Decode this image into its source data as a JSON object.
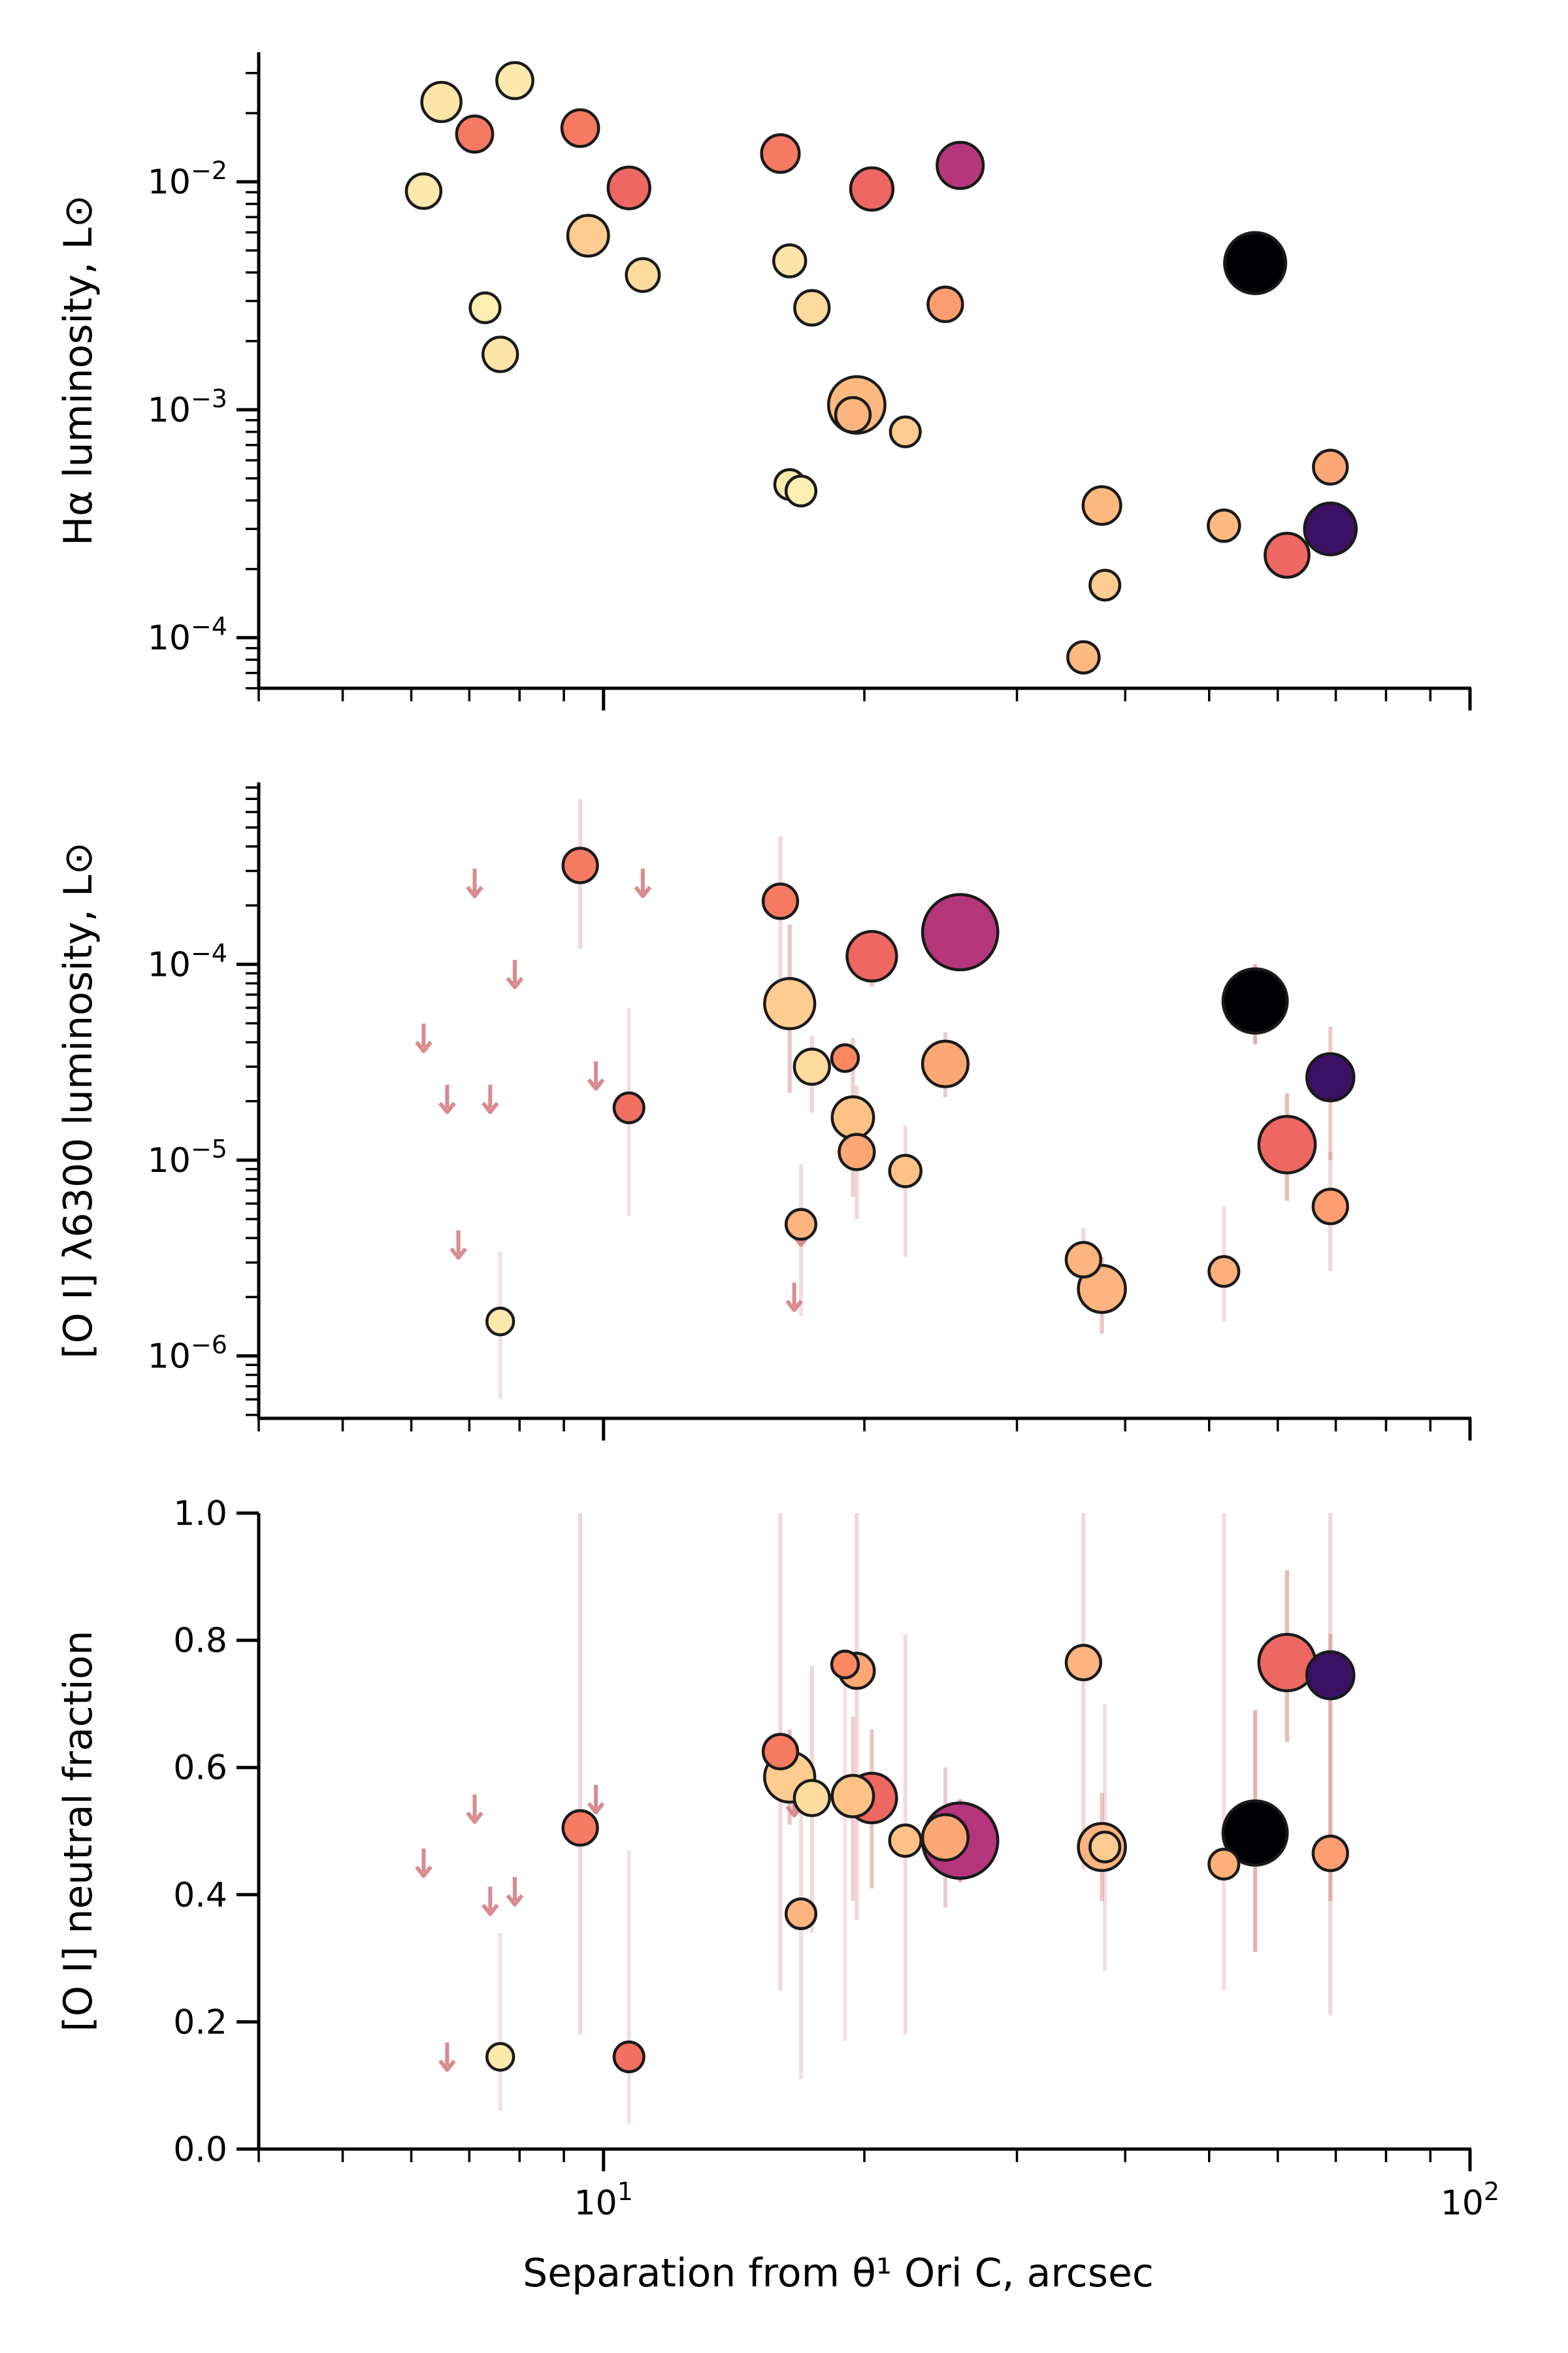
{
  "chart_data": [
    {
      "type": "scatter",
      "ylabel": "Hα luminosity, L⊙",
      "xscale": "log",
      "yscale": "log",
      "xlim": [
        4,
        100
      ],
      "ylim": [
        6e-05,
        0.037
      ],
      "yticks": [
        {
          "value": 0.0001,
          "base": "10",
          "exp": "−4"
        },
        {
          "value": 0.001,
          "base": "10",
          "exp": "−3"
        },
        {
          "value": 0.01,
          "base": "10",
          "exp": "−2"
        }
      ],
      "points": [
        {
          "x": 6.2,
          "y": 0.0091,
          "s": 0.6,
          "c": 0.96
        },
        {
          "x": 6.5,
          "y": 0.0224,
          "s": 0.75,
          "c": 0.95
        },
        {
          "x": 7.1,
          "y": 0.0162,
          "s": 0.65,
          "c": 0.72
        },
        {
          "x": 7.3,
          "y": 0.0028,
          "s": 0.45,
          "c": 0.97
        },
        {
          "x": 7.6,
          "y": 0.00175,
          "s": 0.6,
          "c": 0.95
        },
        {
          "x": 7.9,
          "y": 0.0278,
          "s": 0.65,
          "c": 0.96
        },
        {
          "x": 9.4,
          "y": 0.0172,
          "s": 0.67,
          "c": 0.72
        },
        {
          "x": 9.6,
          "y": 0.0058,
          "s": 0.8,
          "c": 0.9
        },
        {
          "x": 10.7,
          "y": 0.0094,
          "s": 0.83,
          "c": 0.68
        },
        {
          "x": 11.1,
          "y": 0.0039,
          "s": 0.55,
          "c": 0.93
        },
        {
          "x": 16.0,
          "y": 0.0133,
          "s": 0.7,
          "c": 0.72
        },
        {
          "x": 16.4,
          "y": 0.0045,
          "s": 0.52,
          "c": 0.95
        },
        {
          "x": 16.4,
          "y": 0.00047,
          "s": 0.45,
          "c": 0.96
        },
        {
          "x": 16.9,
          "y": 0.00044,
          "s": 0.45,
          "c": 0.97
        },
        {
          "x": 17.4,
          "y": 0.0028,
          "s": 0.6,
          "c": 0.93
        },
        {
          "x": 19.4,
          "y": 0.00095,
          "s": 0.6,
          "c": 0.85
        },
        {
          "x": 19.6,
          "y": 0.00105,
          "s": 1.3,
          "c": 0.86
        },
        {
          "x": 20.4,
          "y": 0.0093,
          "s": 0.85,
          "c": 0.68
        },
        {
          "x": 22.3,
          "y": 0.0008,
          "s": 0.45,
          "c": 0.9
        },
        {
          "x": 24.8,
          "y": 0.0029,
          "s": 0.6,
          "c": 0.8
        },
        {
          "x": 25.8,
          "y": 0.0118,
          "s": 0.97,
          "c": 0.5
        },
        {
          "x": 35.8,
          "y": 8.2e-05,
          "s": 0.5,
          "c": 0.86
        },
        {
          "x": 37.6,
          "y": 0.00038,
          "s": 0.7,
          "c": 0.86
        },
        {
          "x": 37.9,
          "y": 0.00017,
          "s": 0.45,
          "c": 0.9
        },
        {
          "x": 52.0,
          "y": 0.00031,
          "s": 0.5,
          "c": 0.86
        },
        {
          "x": 56.5,
          "y": 0.0044,
          "s": 1.45,
          "c": 0.0
        },
        {
          "x": 61.5,
          "y": 0.00023,
          "s": 0.9,
          "c": 0.68
        },
        {
          "x": 69.0,
          "y": 0.00056,
          "s": 0.58,
          "c": 0.82
        },
        {
          "x": 69.0,
          "y": 0.0003,
          "s": 1.15,
          "c": 0.2
        }
      ]
    },
    {
      "type": "scatter",
      "ylabel": "[O I] λ6300 luminosity, L⊙",
      "xscale": "log",
      "yscale": "log",
      "xlim": [
        4,
        100
      ],
      "ylim": [
        4.8e-07,
        0.00085
      ],
      "yticks": [
        {
          "value": 1e-06,
          "base": "10",
          "exp": "−6"
        },
        {
          "value": 1e-05,
          "base": "10",
          "exp": "−5"
        },
        {
          "value": 0.0001,
          "base": "10",
          "exp": "−4"
        }
      ],
      "points": [
        {
          "x": 7.6,
          "y": 1.5e-06,
          "s": 0.35,
          "c": 0.96,
          "elo": 6e-07,
          "ehi": 3.4e-06
        },
        {
          "x": 9.4,
          "y": 0.00032,
          "s": 0.6,
          "c": 0.72,
          "elo": 0.00012,
          "ehi": 0.0007
        },
        {
          "x": 10.7,
          "y": 1.85e-05,
          "s": 0.45,
          "c": 0.7,
          "elo": 5.2e-06,
          "ehi": 6e-05
        },
        {
          "x": 16.0,
          "y": 0.00021,
          "s": 0.6,
          "c": 0.72,
          "elo": 6.2e-05,
          "ehi": 0.00045
        },
        {
          "x": 16.4,
          "y": 6.3e-05,
          "s": 1.1,
          "c": 0.9,
          "elo": 2.2e-05,
          "ehi": 0.00016
        },
        {
          "x": 16.9,
          "y": 4.7e-06,
          "s": 0.45,
          "c": 0.85,
          "elo": 1.6e-06,
          "ehi": 9.5e-06
        },
        {
          "x": 17.4,
          "y": 3e-05,
          "s": 0.62,
          "c": 0.93,
          "elo": 1.75e-05,
          "ehi": 4.3e-05
        },
        {
          "x": 19.0,
          "y": 3.32e-05,
          "s": 0.35,
          "c": 0.75
        },
        {
          "x": 19.4,
          "y": 1.65e-05,
          "s": 0.82,
          "c": 0.88,
          "elo": 6.5e-06,
          "ehi": 4.2e-05
        },
        {
          "x": 19.6,
          "y": 1.1e-05,
          "s": 0.62,
          "c": 0.82,
          "elo": 5e-06,
          "ehi": 2.4e-05
        },
        {
          "x": 20.4,
          "y": 0.00011,
          "s": 1.08,
          "c": 0.68,
          "elo": 7.7e-05,
          "ehi": 0.00015
        },
        {
          "x": 22.3,
          "y": 8.8e-06,
          "s": 0.5,
          "c": 0.88,
          "elo": 3.2e-06,
          "ehi": 1.5e-05
        },
        {
          "x": 24.8,
          "y": 3.1e-05,
          "s": 0.95,
          "c": 0.82,
          "elo": 2.1e-05,
          "ehi": 4.5e-05
        },
        {
          "x": 25.8,
          "y": 0.000146,
          "s": 1.9,
          "c": 0.5,
          "elo": 0.00011,
          "ehi": 0.00019
        },
        {
          "x": 35.8,
          "y": 3.1e-06,
          "s": 0.6,
          "c": 0.85,
          "elo": 1.8e-06,
          "ehi": 4.5e-06
        },
        {
          "x": 37.6,
          "y": 2.2e-06,
          "s": 1.0,
          "c": 0.85,
          "elo": 1.3e-06,
          "ehi": 3.2e-06
        },
        {
          "x": 52.0,
          "y": 2.7e-06,
          "s": 0.45,
          "c": 0.84,
          "elo": 1.5e-06,
          "ehi": 5.8e-06
        },
        {
          "x": 56.5,
          "y": 6.5e-05,
          "s": 1.55,
          "c": 0.0,
          "elo": 3.9e-05,
          "ehi": 0.0001
        },
        {
          "x": 61.5,
          "y": 1.2e-05,
          "s": 1.3,
          "c": 0.68,
          "elo": 6.2e-06,
          "ehi": 2.2e-05
        },
        {
          "x": 69.0,
          "y": 5.8e-06,
          "s": 0.6,
          "c": 0.8,
          "elo": 2.7e-06,
          "ehi": 1.1e-05
        },
        {
          "x": 69.0,
          "y": 2.65e-05,
          "s": 1.0,
          "c": 0.2,
          "elo": 1e-05,
          "ehi": 4.8e-05
        }
      ],
      "upper_limits": [
        {
          "x": 6.2,
          "y": 4.2e-05
        },
        {
          "x": 6.6,
          "y": 2.05e-05
        },
        {
          "x": 6.8,
          "y": 3.7e-06
        },
        {
          "x": 7.1,
          "y": 0.00026
        },
        {
          "x": 7.4,
          "y": 2.05e-05
        },
        {
          "x": 7.9,
          "y": 8.9e-05
        },
        {
          "x": 9.8,
          "y": 2.7e-05
        },
        {
          "x": 11.1,
          "y": 0.00026
        },
        {
          "x": 16.9,
          "y": 4.3e-06
        },
        {
          "x": 16.6,
          "y": 2e-06
        }
      ]
    },
    {
      "type": "scatter",
      "xlabel": "Separation from θ¹ Ori C, arcsec",
      "ylabel": "[O I] neutral fraction",
      "xscale": "log",
      "yscale": "linear",
      "xlim": [
        4,
        100
      ],
      "ylim": [
        0.0,
        1.0
      ],
      "yticks": [
        {
          "value": 0.0,
          "label": "0.0"
        },
        {
          "value": 0.2,
          "label": "0.2"
        },
        {
          "value": 0.4,
          "label": "0.4"
        },
        {
          "value": 0.6,
          "label": "0.6"
        },
        {
          "value": 0.8,
          "label": "0.8"
        },
        {
          "value": 1.0,
          "label": "1.0"
        }
      ],
      "xticks": [
        {
          "value": 10,
          "base": "10",
          "exp": "1"
        },
        {
          "value": 100,
          "base": "10",
          "exp": "2"
        }
      ],
      "points": [
        {
          "x": 7.6,
          "y": 0.145,
          "s": 0.35,
          "c": 0.96,
          "elo": 0.06,
          "ehi": 0.34
        },
        {
          "x": 9.4,
          "y": 0.505,
          "s": 0.6,
          "c": 0.72,
          "elo": 0.18,
          "ehi": 1.0
        },
        {
          "x": 10.7,
          "y": 0.145,
          "s": 0.45,
          "c": 0.7,
          "elo": 0.04,
          "ehi": 0.47
        },
        {
          "x": 16.0,
          "y": 0.625,
          "s": 0.6,
          "c": 0.72,
          "elo": 0.25,
          "ehi": 1.0
        },
        {
          "x": 16.4,
          "y": 0.585,
          "s": 1.1,
          "c": 0.9,
          "elo": 0.51,
          "ehi": 0.66
        },
        {
          "x": 16.9,
          "y": 0.37,
          "s": 0.45,
          "c": 0.85,
          "elo": 0.11,
          "ehi": 0.6
        },
        {
          "x": 17.4,
          "y": 0.552,
          "s": 0.62,
          "c": 0.93,
          "elo": 0.34,
          "ehi": 0.76
        },
        {
          "x": 19.0,
          "y": 0.762,
          "s": 0.35,
          "c": 0.75,
          "elo": 0.17,
          "ehi": 0.76
        },
        {
          "x": 19.4,
          "y": 0.555,
          "s": 0.82,
          "c": 0.88,
          "elo": 0.39,
          "ehi": 0.68
        },
        {
          "x": 19.6,
          "y": 0.752,
          "s": 0.62,
          "c": 0.82,
          "elo": 0.36,
          "ehi": 1.0
        },
        {
          "x": 20.4,
          "y": 0.552,
          "s": 1.08,
          "c": 0.68,
          "elo": 0.41,
          "ehi": 0.66
        },
        {
          "x": 22.3,
          "y": 0.485,
          "s": 0.5,
          "c": 0.88,
          "elo": 0.18,
          "ehi": 0.81
        },
        {
          "x": 24.8,
          "y": 0.49,
          "s": 0.95,
          "c": 0.82,
          "elo": 0.38,
          "ehi": 0.6
        },
        {
          "x": 25.8,
          "y": 0.485,
          "s": 1.9,
          "c": 0.5,
          "elo": 0.42,
          "ehi": 0.55
        },
        {
          "x": 35.8,
          "y": 0.765,
          "s": 0.6,
          "c": 0.85,
          "elo": 0.44,
          "ehi": 1.0
        },
        {
          "x": 37.6,
          "y": 0.475,
          "s": 1.0,
          "c": 0.85,
          "elo": 0.39,
          "ehi": 0.56
        },
        {
          "x": 37.9,
          "y": 0.475,
          "s": 0.45,
          "c": 0.9,
          "elo": 0.28,
          "ehi": 0.7
        },
        {
          "x": 52.0,
          "y": 0.448,
          "s": 0.45,
          "c": 0.84,
          "elo": 0.25,
          "ehi": 1.0
        },
        {
          "x": 56.5,
          "y": 0.497,
          "s": 1.55,
          "c": 0.0,
          "elo": 0.31,
          "ehi": 0.69
        },
        {
          "x": 61.5,
          "y": 0.765,
          "s": 1.3,
          "c": 0.68,
          "elo": 0.64,
          "ehi": 0.91
        },
        {
          "x": 69.0,
          "y": 0.465,
          "s": 0.6,
          "c": 0.8,
          "elo": 0.21,
          "ehi": 1.0
        },
        {
          "x": 69.0,
          "y": 0.745,
          "s": 1.0,
          "c": 0.2,
          "elo": 0.39,
          "ehi": 0.81
        }
      ],
      "upper_limits": [
        {
          "x": 6.2,
          "y": 0.45
        },
        {
          "x": 6.6,
          "y": 0.145
        },
        {
          "x": 7.1,
          "y": 0.535
        },
        {
          "x": 7.4,
          "y": 0.39
        },
        {
          "x": 7.9,
          "y": 0.405
        },
        {
          "x": 9.8,
          "y": 0.55
        },
        {
          "x": 16.6,
          "y": 0.545
        }
      ]
    }
  ]
}
